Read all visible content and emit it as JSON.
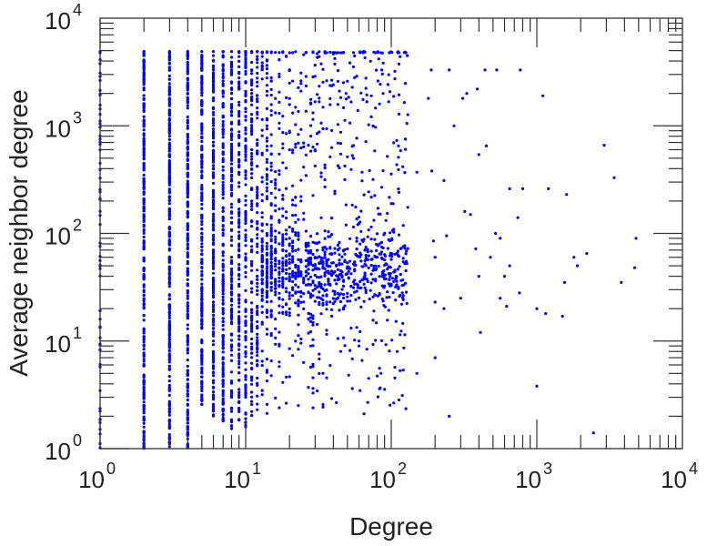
{
  "chart_data": {
    "type": "scatter",
    "title": "",
    "xlabel": "Degree",
    "ylabel": "Average neighbor degree",
    "xscale": "log",
    "yscale": "log",
    "xlim": [
      1,
      10000
    ],
    "ylim": [
      1,
      10000
    ],
    "x_ticks": [
      {
        "base": "10",
        "exp": "0",
        "value": 1
      },
      {
        "base": "10",
        "exp": "1",
        "value": 10
      },
      {
        "base": "10",
        "exp": "2",
        "value": 100
      },
      {
        "base": "10",
        "exp": "3",
        "value": 1000
      },
      {
        "base": "10",
        "exp": "4",
        "value": 10000
      }
    ],
    "y_ticks": [
      {
        "base": "10",
        "exp": "0",
        "value": 1
      },
      {
        "base": "10",
        "exp": "1",
        "value": 10
      },
      {
        "base": "10",
        "exp": "2",
        "value": 100
      },
      {
        "base": "10",
        "exp": "3",
        "value": 1000
      },
      {
        "base": "10",
        "exp": "4",
        "value": 10000
      }
    ],
    "grid": false,
    "marker_color": "#0000ff",
    "integer_degree_columns": [
      {
        "degree": 1,
        "y_min": 1,
        "y_max": 4900,
        "count": 60
      },
      {
        "degree": 2,
        "y_min": 1,
        "y_max": 4900,
        "count": 260
      },
      {
        "degree": 3,
        "y_min": 1,
        "y_max": 4900,
        "count": 260
      },
      {
        "degree": 4,
        "y_min": 1,
        "y_max": 4900,
        "count": 240
      },
      {
        "degree": 5,
        "y_min": 2.5,
        "y_max": 4900,
        "count": 220
      },
      {
        "degree": 6,
        "y_min": 2,
        "y_max": 4900,
        "count": 200
      },
      {
        "degree": 7,
        "y_min": 1.6,
        "y_max": 4900,
        "count": 180
      },
      {
        "degree": 8,
        "y_min": 1.5,
        "y_max": 4900,
        "count": 160
      },
      {
        "degree": 9,
        "y_min": 1.8,
        "y_max": 4900,
        "count": 140
      },
      {
        "degree": 10,
        "y_min": 1.5,
        "y_max": 4900,
        "count": 120
      },
      {
        "degree": 11,
        "y_min": 2,
        "y_max": 4900,
        "count": 100
      },
      {
        "degree": 12,
        "y_min": 2,
        "y_max": 4900,
        "count": 90
      }
    ],
    "dense_region": {
      "degree_range": [
        13,
        130
      ],
      "count": 1300,
      "cluster_center_y": 45,
      "cluster_fraction": 0.55,
      "background_y_range": [
        2,
        4900
      ]
    },
    "saturated_top_y": 4900,
    "tail_points": [
      [
        125,
        4800
      ],
      [
        188,
        3300
      ],
      [
        180,
        1800
      ],
      [
        250,
        3300
      ],
      [
        330,
        2000
      ],
      [
        310,
        1800
      ],
      [
        390,
        2200
      ],
      [
        440,
        3300
      ],
      [
        530,
        3300
      ],
      [
        770,
        3300
      ],
      [
        270,
        1000
      ],
      [
        400,
        540
      ],
      [
        450,
        650
      ],
      [
        1100,
        1900
      ],
      [
        2900,
        660
      ],
      [
        190,
        380
      ],
      [
        230,
        310
      ],
      [
        150,
        370
      ],
      [
        650,
        260
      ],
      [
        800,
        260
      ],
      [
        1200,
        260
      ],
      [
        1600,
        230
      ],
      [
        3400,
        330
      ],
      [
        740,
        140
      ],
      [
        350,
        150
      ],
      [
        320,
        160
      ],
      [
        240,
        95
      ],
      [
        195,
        85
      ],
      [
        200,
        60
      ],
      [
        520,
        100
      ],
      [
        560,
        90
      ],
      [
        380,
        72
      ],
      [
        480,
        60
      ],
      [
        600,
        40
      ],
      [
        650,
        50
      ],
      [
        400,
        40
      ],
      [
        1550,
        35
      ],
      [
        1800,
        60
      ],
      [
        1900,
        50
      ],
      [
        2200,
        65
      ],
      [
        4800,
        90
      ],
      [
        4700,
        48
      ],
      [
        3800,
        35
      ],
      [
        560,
        25
      ],
      [
        620,
        21
      ],
      [
        760,
        28
      ],
      [
        410,
        12
      ],
      [
        1000,
        20
      ],
      [
        1150,
        18
      ],
      [
        1500,
        17
      ],
      [
        300,
        25
      ],
      [
        230,
        20
      ],
      [
        200,
        23
      ],
      [
        110,
        8
      ],
      [
        200,
        7
      ],
      [
        85,
        5
      ],
      [
        70,
        4.5
      ],
      [
        1000,
        3.8
      ],
      [
        250,
        2
      ],
      [
        2450,
        1.4
      ],
      [
        60,
        9
      ],
      [
        150,
        5
      ]
    ]
  }
}
